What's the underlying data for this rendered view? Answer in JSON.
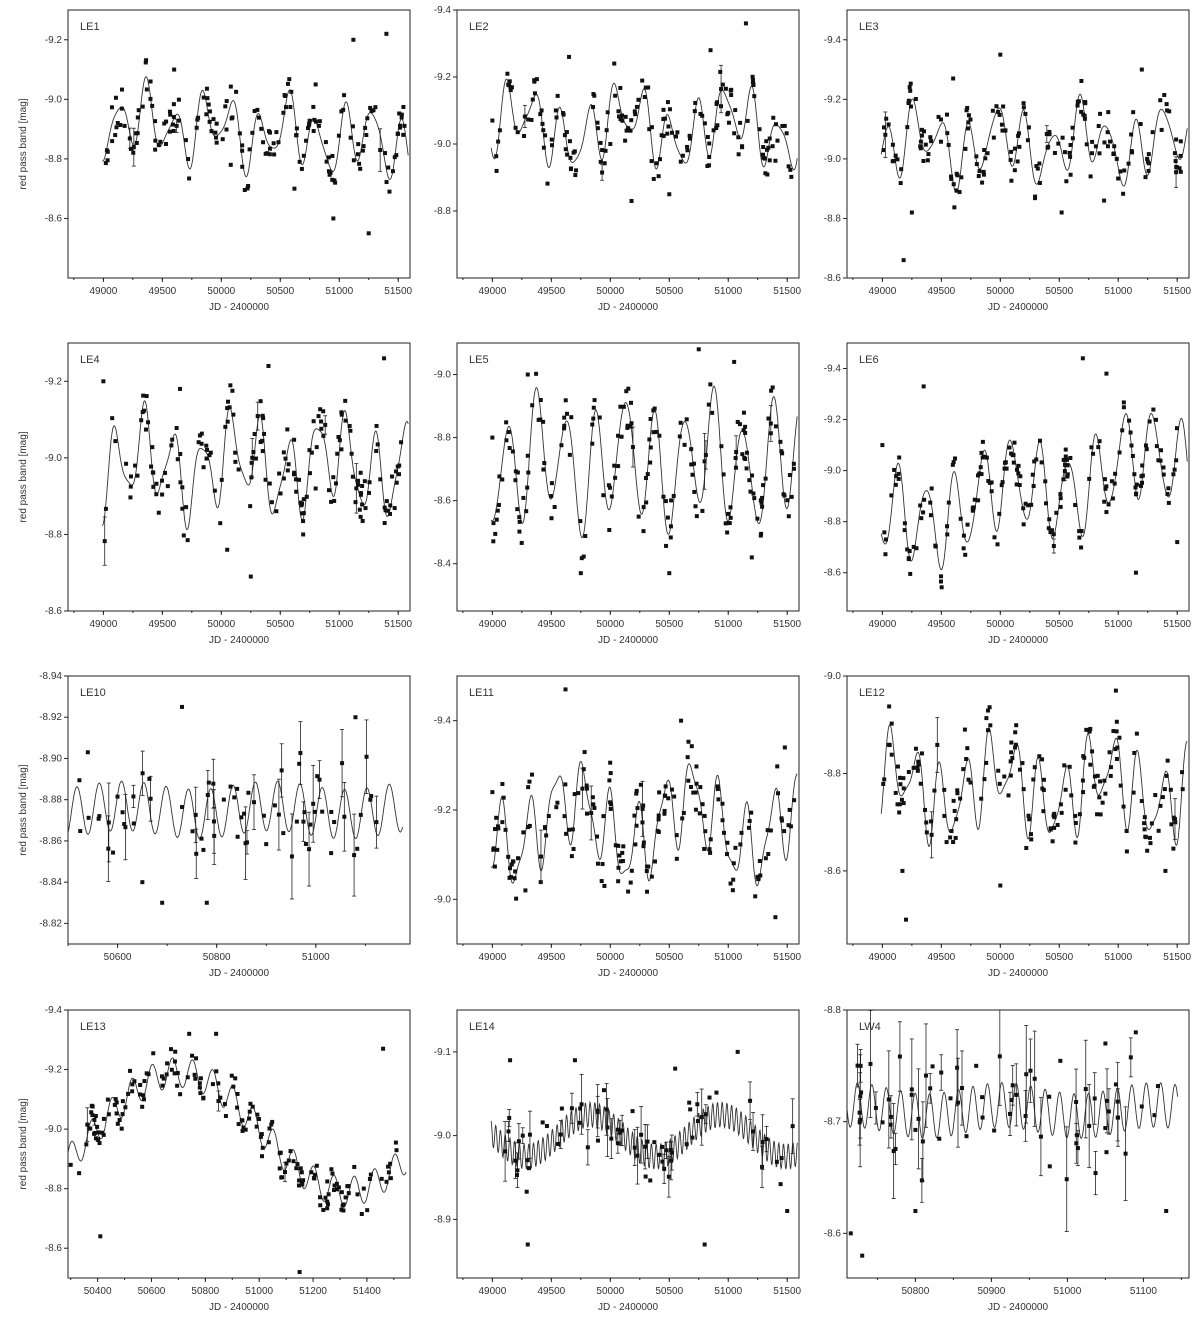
{
  "chart_data": [
    {
      "type": "scatter",
      "title": "LE1",
      "xlabel": "JD - 2400000",
      "ylabel": "red pass band [mag]",
      "xlim": [
        48700,
        51600
      ],
      "ylim": [
        -8.4,
        -9.3
      ],
      "xticks": [
        49000,
        49500,
        50000,
        50500,
        51000,
        51500
      ],
      "yticks": [
        -8.6,
        -8.8,
        -9.0,
        -9.2
      ],
      "model": {
        "mean": -8.9,
        "amps": [
          0.09,
          0.04,
          0.03
        ],
        "periods": [
          240,
          620,
          155
        ],
        "phases": [
          0.3,
          1.1,
          2.0
        ],
        "trend": [
          0,
          3e-05
        ]
      },
      "spread": 0.06,
      "errorbar_count": 4,
      "sample_points": [
        [
          49100,
          -8.88
        ],
        [
          49400,
          -9.06
        ],
        [
          49600,
          -9.1
        ],
        [
          50080,
          -8.78
        ],
        [
          50620,
          -8.7
        ],
        [
          50800,
          -9.05
        ],
        [
          50950,
          -8.6
        ],
        [
          51120,
          -9.2
        ],
        [
          51250,
          -8.55
        ],
        [
          51400,
          -9.22
        ]
      ]
    },
    {
      "type": "scatter",
      "title": "LE2",
      "xlabel": "JD - 2400000",
      "ylabel": "",
      "xlim": [
        48700,
        51600
      ],
      "ylim": [
        -8.6,
        -9.4
      ],
      "xticks": [
        49000,
        49500,
        50000,
        50500,
        51000,
        51500
      ],
      "yticks": [
        -8.8,
        -9.0,
        -9.2,
        -9.4
      ],
      "model": {
        "mean": -9.05,
        "amps": [
          0.08,
          0.05,
          0.03
        ],
        "periods": [
          230,
          900,
          150
        ],
        "phases": [
          1.0,
          0.4,
          2.3
        ],
        "trend": [
          0,
          0
        ]
      },
      "spread": 0.06,
      "errorbar_count": 3,
      "sample_points": [
        [
          49000,
          -9.07
        ],
        [
          49650,
          -9.26
        ],
        [
          50000,
          -9.0
        ],
        [
          50180,
          -8.83
        ],
        [
          50500,
          -8.85
        ],
        [
          50850,
          -9.28
        ],
        [
          51150,
          -9.36
        ],
        [
          51400,
          -8.95
        ]
      ]
    },
    {
      "type": "scatter",
      "title": "LE3",
      "xlabel": "JD - 2400000",
      "ylabel": "",
      "xlim": [
        48700,
        51600
      ],
      "ylim": [
        -8.6,
        -9.5
      ],
      "xticks": [
        49000,
        49500,
        50000,
        50500,
        51000,
        51500
      ],
      "yticks": [
        -8.6,
        -8.8,
        -9.0,
        -9.2,
        -9.4
      ],
      "model": {
        "mean": -9.05,
        "amps": [
          0.09,
          0.05,
          0.03
        ],
        "periods": [
          235,
          700,
          160
        ],
        "phases": [
          0.7,
          1.9,
          0.2
        ],
        "trend": [
          0,
          0
        ]
      },
      "spread": 0.07,
      "errorbar_count": 3,
      "sample_points": [
        [
          49180,
          -8.66
        ],
        [
          49250,
          -8.82
        ],
        [
          49600,
          -9.27
        ],
        [
          50000,
          -9.35
        ],
        [
          50520,
          -8.82
        ],
        [
          50880,
          -8.86
        ],
        [
          51200,
          -9.3
        ]
      ]
    },
    {
      "type": "scatter",
      "title": "LE4",
      "xlabel": "JD - 2400000",
      "ylabel": "red pass band [mag]",
      "xlim": [
        48700,
        51600
      ],
      "ylim": [
        -8.6,
        -9.3
      ],
      "xticks": [
        49000,
        49500,
        50000,
        50500,
        51000,
        51500
      ],
      "yticks": [
        -8.6,
        -8.8,
        -9.0,
        -9.2
      ],
      "model": {
        "mean": -8.98,
        "amps": [
          0.1,
          0.04,
          0.03
        ],
        "periods": [
          245,
          800,
          140
        ],
        "phases": [
          2.1,
          0.5,
          1.4
        ],
        "trend": [
          0,
          0
        ]
      },
      "spread": 0.07,
      "errorbar_count": 5,
      "sample_points": [
        [
          49000,
          -9.2
        ],
        [
          49650,
          -9.18
        ],
        [
          50050,
          -8.76
        ],
        [
          50250,
          -8.69
        ],
        [
          50400,
          -9.24
        ],
        [
          50800,
          -8.92
        ],
        [
          51380,
          -9.26
        ]
      ]
    },
    {
      "type": "scatter",
      "title": "LE5",
      "xlabel": "JD - 2400000",
      "ylabel": "",
      "xlim": [
        48700,
        51600
      ],
      "ylim": [
        -8.25,
        -9.1
      ],
      "xticks": [
        49000,
        49500,
        50000,
        50500,
        51000,
        51500
      ],
      "yticks": [
        -8.4,
        -8.6,
        -8.8,
        -9.0
      ],
      "model": {
        "mean": -8.72,
        "amps": [
          0.17,
          0.05,
          0.03
        ],
        "periods": [
          250,
          700,
          170
        ],
        "phases": [
          1.5,
          0.9,
          2.6
        ],
        "trend": [
          0,
          0
        ]
      },
      "spread": 0.08,
      "errorbar_count": 5,
      "sample_points": [
        [
          49000,
          -8.8
        ],
        [
          49300,
          -9.0
        ],
        [
          49750,
          -8.37
        ],
        [
          50500,
          -8.37
        ],
        [
          50750,
          -9.08
        ],
        [
          51050,
          -9.04
        ],
        [
          51200,
          -8.42
        ]
      ]
    },
    {
      "type": "scatter",
      "title": "LE6",
      "xlabel": "JD - 2400000",
      "ylabel": "",
      "xlim": [
        48700,
        51600
      ],
      "ylim": [
        -8.45,
        -9.5
      ],
      "xticks": [
        49000,
        49500,
        50000,
        50500,
        51000,
        51500
      ],
      "yticks": [
        -8.6,
        -8.8,
        -9.0,
        -9.2,
        -9.4
      ],
      "model": {
        "mean": -9.05,
        "amps": [
          0.16,
          0.06,
          0.03
        ],
        "periods": [
          240,
          1100,
          150
        ],
        "phases": [
          0.2,
          1.6,
          0.8
        ],
        "trend": [
          0.15,
          -0.0001
        ]
      },
      "spread": 0.07,
      "errorbar_count": 2,
      "sample_points": [
        [
          49000,
          -9.1
        ],
        [
          49350,
          -9.33
        ],
        [
          49550,
          -8.75
        ],
        [
          50700,
          -9.44
        ],
        [
          50900,
          -9.38
        ],
        [
          51150,
          -8.6
        ],
        [
          51500,
          -8.72
        ]
      ]
    },
    {
      "type": "scatter",
      "title": "LE10",
      "xlabel": "JD - 2400000",
      "ylabel": "red pass band [mag]",
      "xlim": [
        50500,
        51190
      ],
      "ylim": [
        -8.81,
        -8.94
      ],
      "xticks": [
        50600,
        50800,
        51000
      ],
      "yticks": [
        -8.82,
        -8.84,
        -8.86,
        -8.88,
        -8.9,
        -8.92,
        -8.94
      ],
      "model": {
        "mean": -8.875,
        "amps": [
          0.012,
          0.002
        ],
        "periods": [
          45,
          300
        ],
        "phases": [
          0.8,
          0.3
        ],
        "trend": [
          0,
          0
        ]
      },
      "spread": 0.018,
      "errorbar_count": 28,
      "sample_points": [
        [
          50540,
          -8.903
        ],
        [
          50650,
          -8.84
        ],
        [
          50690,
          -8.83
        ],
        [
          50730,
          -8.925
        ],
        [
          50780,
          -8.83
        ],
        [
          51080,
          -8.92
        ],
        [
          51110,
          -8.88
        ]
      ]
    },
    {
      "type": "scatter",
      "title": "LE11",
      "xlabel": "JD - 2400000",
      "ylabel": "",
      "xlim": [
        48700,
        51600
      ],
      "ylim": [
        -8.9,
        -9.5
      ],
      "xticks": [
        49000,
        49500,
        50000,
        50500,
        51000,
        51500
      ],
      "yticks": [
        -9.0,
        -9.2,
        -9.4
      ],
      "model": {
        "mean": -9.17,
        "amps": [
          0.08,
          0.06,
          0.03
        ],
        "periods": [
          230,
          1000,
          130
        ],
        "phases": [
          2.2,
          0.5,
          1.2
        ],
        "trend": [
          0,
          0
        ]
      },
      "spread": 0.06,
      "errorbar_count": 4,
      "sample_points": [
        [
          49000,
          -9.24
        ],
        [
          49280,
          -9.02
        ],
        [
          49620,
          -9.47
        ],
        [
          49950,
          -9.03
        ],
        [
          50600,
          -9.4
        ],
        [
          51400,
          -8.96
        ],
        [
          51480,
          -9.34
        ]
      ]
    },
    {
      "type": "scatter",
      "title": "LE12",
      "xlabel": "JD - 2400000",
      "ylabel": "",
      "xlim": [
        48700,
        51600
      ],
      "ylim": [
        -8.45,
        -9.0
      ],
      "xticks": [
        49000,
        49500,
        50000,
        50500,
        51000,
        51500
      ],
      "yticks": [
        -8.6,
        -8.8,
        -9.0
      ],
      "model": {
        "mean": -8.77,
        "amps": [
          0.07,
          0.04,
          0.03
        ],
        "periods": [
          210,
          900,
          140
        ],
        "phases": [
          0.4,
          1.3,
          2.5
        ],
        "trend": [
          0,
          0
        ]
      },
      "spread": 0.05,
      "errorbar_count": 3,
      "sample_points": [
        [
          49170,
          -8.6
        ],
        [
          49200,
          -8.5
        ],
        [
          49700,
          -8.89
        ],
        [
          50000,
          -8.57
        ],
        [
          50980,
          -8.97
        ],
        [
          51400,
          -8.6
        ]
      ]
    },
    {
      "type": "scatter",
      "title": "LE13",
      "xlabel": "JD - 2400000",
      "ylabel": "red pass band [mag]",
      "xlim": [
        50290,
        51560
      ],
      "ylim": [
        -8.5,
        -9.4
      ],
      "xticks": [
        50400,
        50600,
        50800,
        51000,
        51200,
        51400
      ],
      "yticks": [
        -8.6,
        -8.8,
        -9.0,
        -9.2,
        -9.4
      ],
      "model": {
        "mean": -8.99,
        "amps": [
          0.2,
          0.05
        ],
        "periods": [
          1250,
          75
        ],
        "phases": [
          1.2,
          0.3
        ],
        "trend": [
          0,
          0
        ]
      },
      "spread": 0.05,
      "errorbar_count": 4,
      "sample_points": [
        [
          50300,
          -8.88
        ],
        [
          50410,
          -8.64
        ],
        [
          50740,
          -9.32
        ],
        [
          50840,
          -9.32
        ],
        [
          51150,
          -8.52
        ],
        [
          51460,
          -9.27
        ]
      ]
    },
    {
      "type": "scatter",
      "title": "LE14",
      "xlabel": "JD - 2400000",
      "ylabel": "",
      "xlim": [
        48700,
        51600
      ],
      "ylim": [
        -8.83,
        -9.15
      ],
      "xticks": [
        49000,
        49500,
        50000,
        50500,
        51000,
        51500
      ],
      "yticks": [
        -8.9,
        -9.0,
        -9.1
      ],
      "model": {
        "mean": -9.0,
        "amps": [
          0.015,
          0.025
        ],
        "periods": [
          40,
          1100
        ],
        "phases": [
          0.2,
          2.8
        ],
        "trend": [
          0,
          0
        ]
      },
      "spread": 0.03,
      "errorbar_count": 40,
      "sample_points": [
        [
          49150,
          -9.09
        ],
        [
          49300,
          -8.87
        ],
        [
          49700,
          -9.09
        ],
        [
          50550,
          -9.08
        ],
        [
          50800,
          -8.87
        ],
        [
          51080,
          -9.1
        ],
        [
          51500,
          -8.91
        ]
      ]
    },
    {
      "type": "scatter",
      "title": "LW4",
      "xlabel": "JD - 2400000",
      "ylabel": "",
      "xlim": [
        50710,
        51160
      ],
      "ylim": [
        -8.56,
        -8.8
      ],
      "xticks": [
        50800,
        50900,
        51000,
        51100
      ],
      "yticks": [
        -8.6,
        -8.7,
        -8.8
      ],
      "model": {
        "mean": -8.71,
        "amps": [
          0.02,
          0.005
        ],
        "periods": [
          19,
          200
        ],
        "phases": [
          0.5,
          1.1
        ],
        "trend": [
          0,
          0
        ]
      },
      "spread": 0.04,
      "errorbar_count": 45,
      "sample_points": [
        [
          50715,
          -8.6
        ],
        [
          50730,
          -8.58
        ],
        [
          50800,
          -8.62
        ],
        [
          50880,
          -8.75
        ],
        [
          51050,
          -8.77
        ],
        [
          51090,
          -8.78
        ],
        [
          51130,
          -8.62
        ]
      ]
    }
  ]
}
